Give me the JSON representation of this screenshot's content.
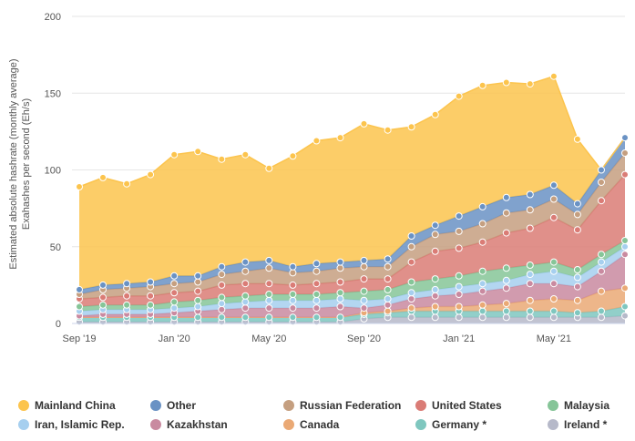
{
  "chart_data": {
    "type": "area",
    "stacked": true,
    "ylabel_lines": [
      "Estimated absolute hashrate (monthly average)",
      "Exahashes per second (Eh/s)"
    ],
    "ylim": [
      0,
      200
    ],
    "yticks": [
      0,
      50,
      100,
      150,
      200
    ],
    "x": [
      "Sep 2019",
      "Oct 2019",
      "Nov 2019",
      "Dec 2019",
      "Jan 2020",
      "Feb 2020",
      "Mar 2020",
      "Apr 2020",
      "May 2020",
      "Jun 2020",
      "Jul 2020",
      "Aug 2020",
      "Sep 2020",
      "Oct 2020",
      "Nov 2020",
      "Dec 2020",
      "Jan 2021",
      "Feb 2021",
      "Mar 2021",
      "Apr 2021",
      "May 2021",
      "Jun 2021",
      "Jul 2021",
      "Aug 2021"
    ],
    "xtick_labels": [
      {
        "index": 0,
        "label": "Sep '19"
      },
      {
        "index": 4,
        "label": "Jan '20"
      },
      {
        "index": 8,
        "label": "May '20"
      },
      {
        "index": 12,
        "label": "Sep '20"
      },
      {
        "index": 16,
        "label": "Jan '21"
      },
      {
        "index": 20,
        "label": "May '21"
      }
    ],
    "series": [
      {
        "name": "Ireland *",
        "color": "#b6b9c9",
        "values": [
          1,
          1,
          1,
          1,
          1,
          1,
          1,
          1,
          1,
          1,
          1,
          1,
          3,
          4,
          4,
          4,
          4,
          4,
          4,
          4,
          4,
          4,
          4,
          5
        ]
      },
      {
        "name": "Germany *",
        "color": "#7fc7bf",
        "values": [
          3,
          3,
          3,
          3,
          3,
          3,
          3,
          3,
          3,
          3,
          3,
          3,
          3,
          3,
          4,
          4,
          4,
          4,
          4,
          4,
          4,
          3,
          4,
          6
        ]
      },
      {
        "name": "Canada",
        "color": "#eaa975",
        "values": [
          0,
          0,
          0,
          0,
          0,
          0,
          0,
          0,
          0,
          0,
          0,
          0,
          1,
          1,
          2,
          3,
          3,
          4,
          5,
          7,
          8,
          8,
          13,
          12
        ]
      },
      {
        "name": "Kazakhstan",
        "color": "#c98aa0",
        "values": [
          1,
          2,
          2,
          2,
          3,
          4,
          5,
          6,
          6,
          6,
          6,
          7,
          3,
          4,
          6,
          7,
          8,
          9,
          10,
          11,
          10,
          9,
          13,
          22
        ]
      },
      {
        "name": "Iran, Islamic Rep.",
        "color": "#a6cfef",
        "values": [
          3,
          3,
          3,
          3,
          3,
          3,
          4,
          4,
          5,
          5,
          5,
          5,
          5,
          4,
          4,
          4,
          5,
          5,
          5,
          6,
          8,
          6,
          6,
          5
        ]
      },
      {
        "name": "Malaysia",
        "color": "#86c598",
        "values": [
          3,
          3,
          3,
          3,
          4,
          4,
          4,
          4,
          4,
          4,
          4,
          4,
          6,
          6,
          7,
          7,
          7,
          8,
          8,
          6,
          6,
          5,
          5,
          4
        ]
      },
      {
        "name": "United States",
        "color": "#da7c76",
        "values": [
          5,
          5,
          6,
          6,
          6,
          6,
          8,
          8,
          7,
          6,
          7,
          7,
          8,
          7,
          13,
          18,
          18,
          19,
          23,
          24,
          29,
          26,
          35,
          43
        ]
      },
      {
        "name": "Russian Federation",
        "color": "#c59f80",
        "values": [
          3,
          5,
          5,
          6,
          6,
          6,
          7,
          8,
          10,
          8,
          8,
          9,
          8,
          8,
          10,
          11,
          11,
          12,
          13,
          12,
          12,
          10,
          12,
          14
        ]
      },
      {
        "name": "Other",
        "color": "#6a92c4",
        "values": [
          3,
          3,
          3,
          3,
          5,
          4,
          5,
          6,
          5,
          4,
          5,
          4,
          4,
          5,
          7,
          6,
          10,
          11,
          10,
          10,
          9,
          7,
          8,
          10
        ]
      },
      {
        "name": "Mainland China",
        "color": "#fcc44d",
        "values": [
          67,
          70,
          65,
          70,
          79,
          81,
          70,
          70,
          60,
          72,
          80,
          81,
          89,
          84,
          71,
          72,
          78,
          79,
          75,
          72,
          71,
          42,
          0,
          0
        ]
      }
    ],
    "legend": {
      "placement": "bottom",
      "order": [
        "Mainland China",
        "Other",
        "Russian Federation",
        "United States",
        "Malaysia",
        "Iran, Islamic Rep.",
        "Kazakhstan",
        "Canada",
        "Germany *",
        "Ireland *"
      ]
    },
    "grid": true
  }
}
